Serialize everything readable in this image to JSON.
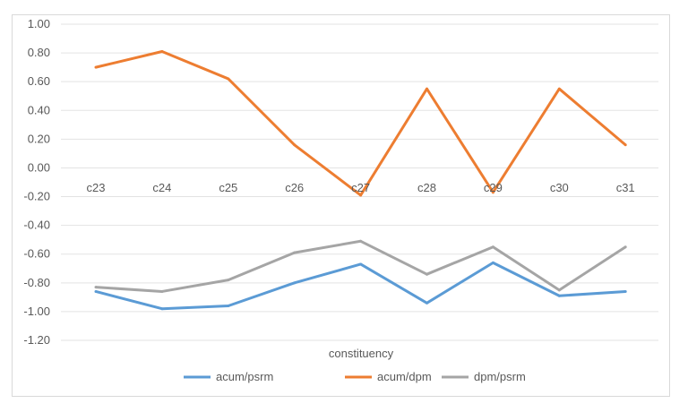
{
  "chart_data": {
    "type": "line",
    "title": "",
    "xlabel": "constituency",
    "ylabel": "",
    "categories": [
      "c23",
      "c24",
      "c25",
      "c26",
      "c27",
      "c28",
      "c29",
      "c30",
      "c31"
    ],
    "ylim": [
      -1.2,
      1.0
    ],
    "yticks": [
      "1.00",
      "0.80",
      "0.60",
      "0.40",
      "0.20",
      "0.00",
      "-0.20",
      "-0.40",
      "-0.60",
      "-0.80",
      "-1.00",
      "-1.20"
    ],
    "grid": true,
    "legend_position": "bottom",
    "series": [
      {
        "name": "acum/psrm",
        "color": "#5b9bd5",
        "values": [
          -0.86,
          -0.98,
          -0.96,
          -0.8,
          -0.67,
          -0.94,
          -0.66,
          -0.89,
          -0.86
        ]
      },
      {
        "name": "acum/dpm",
        "color": "#ed7d31",
        "values": [
          0.7,
          0.81,
          0.62,
          0.16,
          -0.19,
          0.55,
          -0.17,
          0.55,
          0.16
        ]
      },
      {
        "name": "dpm/psrm",
        "color": "#a5a5a5",
        "values": [
          -0.83,
          -0.86,
          -0.78,
          -0.59,
          -0.51,
          -0.74,
          -0.55,
          -0.85,
          -0.55
        ]
      }
    ]
  }
}
